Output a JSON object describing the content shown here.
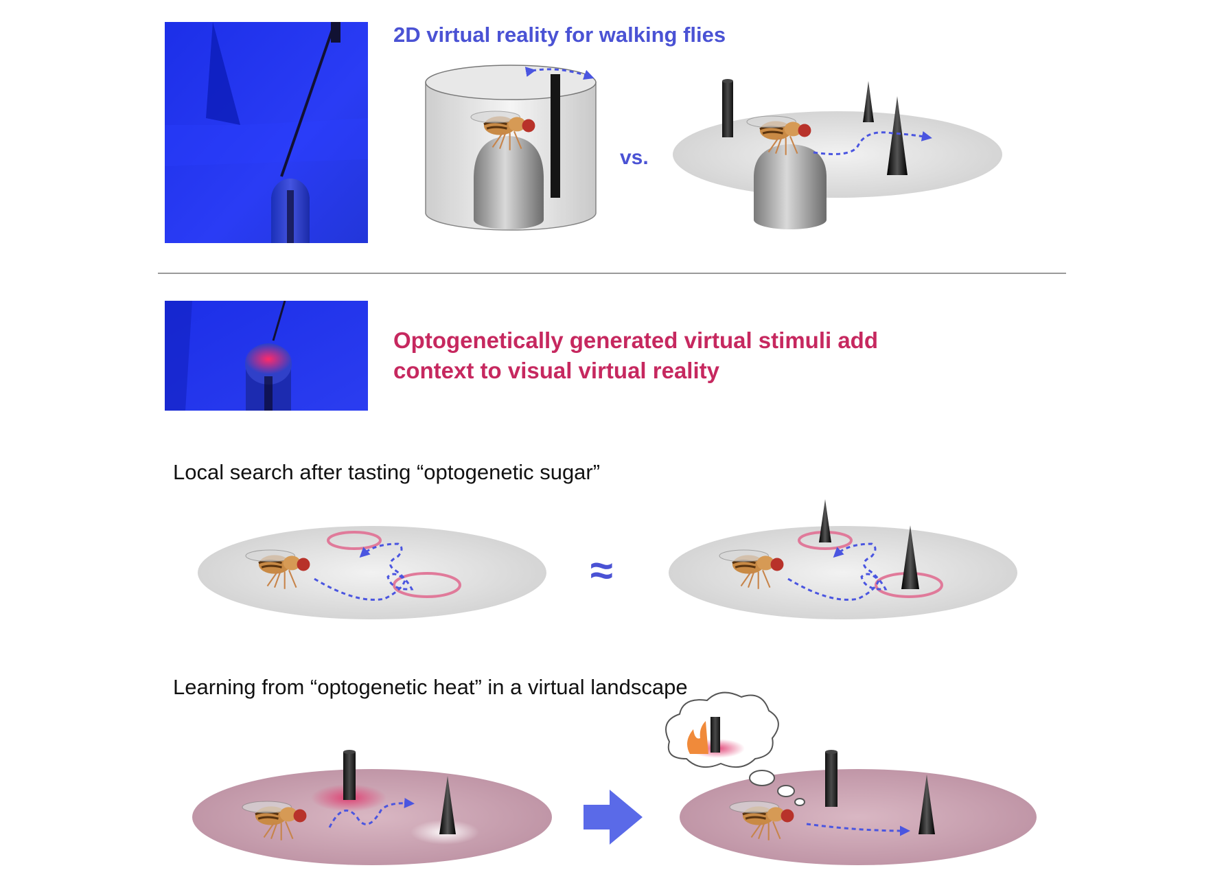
{
  "section1": {
    "title": "2D virtual reality for walking flies",
    "vs_label": "vs."
  },
  "section2": {
    "title_line1": "Optogenetically generated virtual stimuli add",
    "title_line2": "context to visual virtual reality"
  },
  "section3": {
    "heading": "Local search after tasting  “optogenetic sugar”",
    "approx_symbol": "≈"
  },
  "section4": {
    "heading": "Learning from “optogenetic heat” in a virtual landscape"
  },
  "colors": {
    "blue_accent": "#4a52d4",
    "red_accent": "#c6285f",
    "path_blue": "#4a55e0",
    "ring_pink": "#e07a9a",
    "photo_blue": "#2233ee",
    "heat_floor": "#c9a3b2"
  }
}
